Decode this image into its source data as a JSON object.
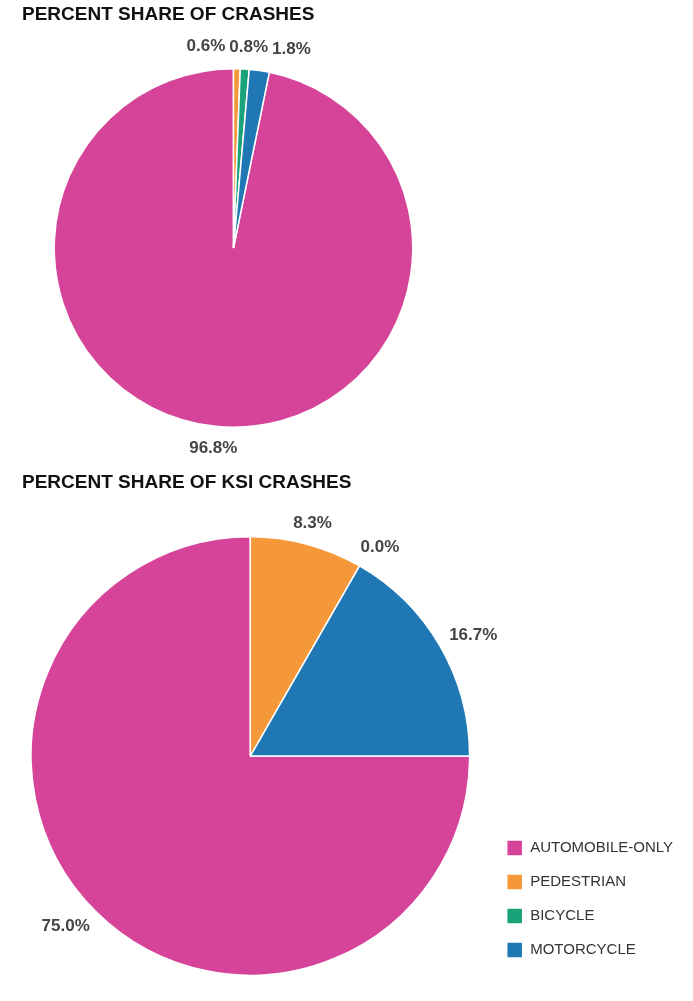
{
  "chart_data": [
    {
      "type": "pie",
      "title": "PERCENT SHARE OF CRASHES",
      "categories": [
        null,
        null,
        null,
        null
      ],
      "values": [
        96.8,
        0.6,
        0.8,
        1.8
      ],
      "colors": [
        "#d6449a",
        "#f4983a",
        "#1aa37a",
        "#1f78b4"
      ],
      "value_labels": [
        "96.8%",
        "0.6%",
        "0.8%",
        "1.8%"
      ],
      "legend": false
    },
    {
      "type": "pie",
      "title": "PERCENT SHARE OF KSI CRASHES",
      "categories": [
        "AUTOMOBILE-ONLY",
        "PEDESTRIAN",
        "BICYCLE",
        "MOTORCYCLE"
      ],
      "values": [
        75.0,
        8.3,
        0.0,
        16.7
      ],
      "colors": [
        "#d6449a",
        "#f4983a",
        "#1aa37a",
        "#1f78b4"
      ],
      "value_labels": [
        "75.0%",
        "8.3%",
        "0.0%",
        "16.7%"
      ],
      "legend": "bottom right"
    }
  ]
}
